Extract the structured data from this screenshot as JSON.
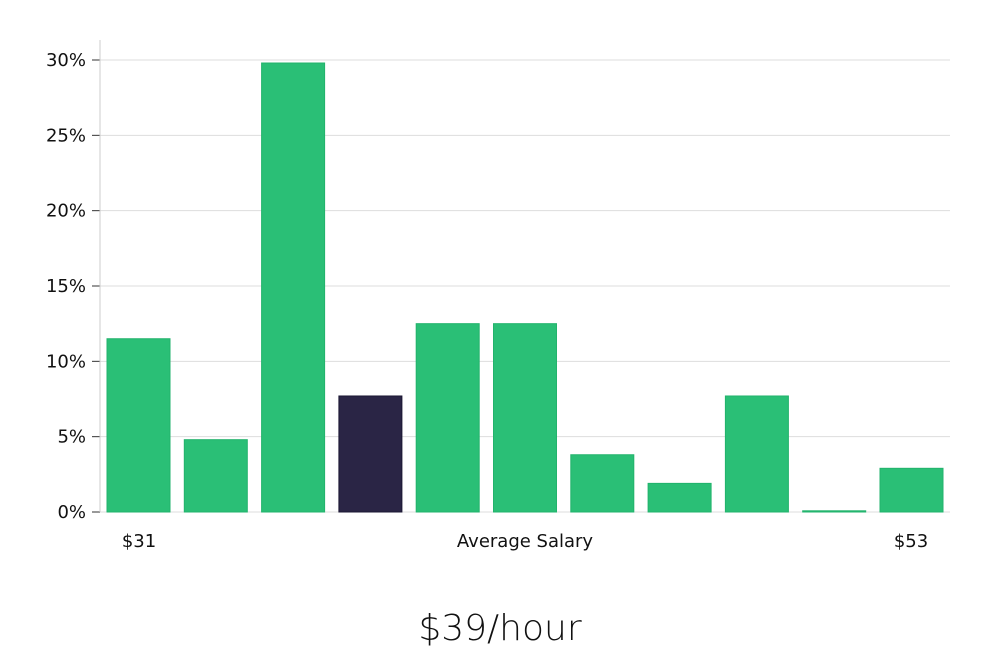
{
  "chart_data": {
    "type": "bar",
    "x_start_label": "$31",
    "x_center_label": "Average Salary",
    "x_end_label": "$53",
    "y_ticks": [
      "0%",
      "5%",
      "10%",
      "15%",
      "20%",
      "25%",
      "30%"
    ],
    "ylim": [
      0,
      30
    ],
    "grid": true,
    "values": [
      11.5,
      4.8,
      29.8,
      7.7,
      12.5,
      12.5,
      3.8,
      1.9,
      7.7,
      0,
      2.9
    ],
    "highlight_index": 3,
    "colors": {
      "bar": "#2abf76",
      "highlight": "#2a2545",
      "grid": "#dddddd",
      "axis": "#cccccc"
    }
  },
  "headline": "$39/hour"
}
